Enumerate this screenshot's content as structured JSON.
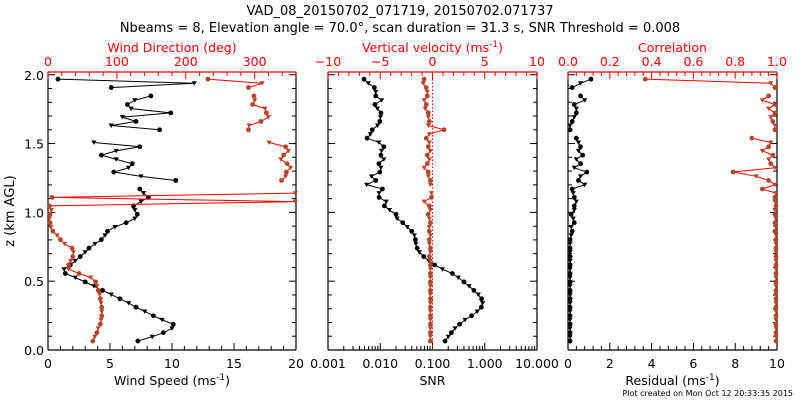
{
  "title_line1": "VAD_08_20150702_071719, 20150702.071737",
  "title_line2": "Nbeams = 8, Elevation angle = 70.0°, scan duration = 31.3 s, SNR Threshold = 0.008",
  "footer": "Plot created on Mon Oct 12 20:33:35 2015",
  "colors": {
    "primary": "#000000",
    "secondary_line": "#ff0000",
    "secondary_marker": "#b5442a",
    "axis_top": "#ff0000"
  },
  "chart_data": [
    {
      "type": "line",
      "panel": "wind",
      "ylabel": "z (km AGL)",
      "ylim": [
        0,
        2.02
      ],
      "yticks": [
        "0.0",
        "0.5",
        "1.0",
        "1.5",
        "2.0"
      ],
      "bottom_axis": {
        "label": "Wind Speed (ms",
        "label_sup": "-1",
        "label_end": ")",
        "range": [
          0,
          20
        ],
        "ticks": [
          "0",
          "5",
          "10",
          "15",
          "20"
        ]
      },
      "top_axis": {
        "label": "Wind Direction (deg)",
        "range": [
          0,
          360
        ],
        "ticks": [
          "0",
          "100",
          "200",
          "300"
        ]
      },
      "series": [
        {
          "name": "Wind Speed",
          "axis": "bottom",
          "color": "#000000",
          "values": [
            7.25,
            8.4,
            9.3,
            10.0,
            10.1,
            9.2,
            8.5,
            7.8,
            7.1,
            6.5,
            5.8,
            5.1,
            4.4,
            3.7,
            3.0,
            2.2,
            1.4,
            1.3,
            1.8,
            2.2,
            2.6,
            3.0,
            3.3,
            3.8,
            4.3,
            4.6,
            4.8,
            5.4,
            6.3,
            7.0,
            7.2,
            7.0,
            6.9,
            7.5,
            8.1,
            7.7,
            7.4,
            null,
            10.3,
            7.5,
            5.3,
            6.5,
            6.8,
            5.5,
            4.3,
            5.5,
            7.4,
            3.7,
            null,
            null,
            9.0,
            5.1,
            7.1,
            6.0,
            9.9,
            6.7,
            6.4,
            7.0,
            8.3,
            null,
            5.1,
            11.8,
            0.8
          ]
        },
        {
          "name": "Wind Direction",
          "axis": "top",
          "color": "#ff0000",
          "values": [
            65,
            68,
            71,
            73,
            76,
            77,
            78,
            78,
            78,
            77,
            76,
            75,
            73,
            71,
            69,
            62,
            45,
            30,
            30,
            33,
            36,
            37,
            35,
            24,
            18,
            13,
            7,
            4,
            3,
            2,
            3,
            5,
            2,
            359,
            6,
            359,
            null,
            null,
            339,
            345,
            346,
            352,
            347,
            338,
            342,
            349,
            345,
            321,
            null,
            null,
            291,
            292,
            309,
            320,
            317,
            315,
            297,
            300,
            299,
            null,
            291,
            311,
            232
          ]
        }
      ]
    },
    {
      "type": "line",
      "panel": "snr_w",
      "ylim": [
        0,
        2.02
      ],
      "bottom_axis": {
        "label": "SNR",
        "scale": "log",
        "range": [
          0.001,
          10
        ],
        "ticks": [
          "0.001",
          "0.010",
          "0.100",
          "1.000",
          "10.000"
        ]
      },
      "top_axis": {
        "label": "Vertical velocity (ms",
        "label_sup": "-1",
        "label_end": ")",
        "range": [
          -10,
          10
        ],
        "ticks": [
          "−10",
          "−5",
          "0",
          "5",
          "10"
        ]
      },
      "series": [
        {
          "name": "SNR",
          "axis": "bottom",
          "color": "#000000",
          "values": [
            0.174,
            0.2,
            0.23,
            0.27,
            0.33,
            0.42,
            0.56,
            0.72,
            0.86,
            0.91,
            0.87,
            0.75,
            0.62,
            0.5,
            0.4,
            0.31,
            0.24,
            0.155,
            0.11,
            0.085,
            0.068,
            0.056,
            0.051,
            0.048,
            0.047,
            0.045,
            0.04,
            0.033,
            0.027,
            0.021,
            0.02,
            0.015,
            0.012,
            0.013,
            0.0095,
            0.0095,
            0.011,
            0.0055,
            0.0082,
            0.0068,
            0.0098,
            0.0103,
            0.0094,
            0.0117,
            0.0103,
            0.0106,
            0.0117,
            0.0094,
            0.0056,
            0.0065,
            0.007,
            0.0089,
            0.0098,
            0.0101,
            0.0103,
            0.0088,
            0.0079,
            0.0106,
            0.0082,
            0.0082,
            0.0077,
            0.0059,
            0.0049
          ]
        },
        {
          "name": "Vertical velocity",
          "axis": "top",
          "color": "#ff0000",
          "values": [
            -0.2,
            -0.2,
            -0.2,
            -0.2,
            -0.2,
            -0.2,
            -0.2,
            -0.2,
            -0.2,
            -0.2,
            -0.2,
            -0.2,
            -0.2,
            -0.2,
            -0.2,
            -0.2,
            -0.2,
            -0.2,
            -0.2,
            -0.2,
            -0.3,
            -0.2,
            -0.2,
            -0.3,
            -0.3,
            -0.2,
            -0.3,
            -0.3,
            -0.2,
            -0.3,
            -0.4,
            -0.2,
            -0.3,
            -0.8,
            -0.1,
            -0.1,
            null,
            -0.2,
            -0.2,
            -0.4,
            -0.4,
            -0.8,
            -0.5,
            -0.3,
            -0.5,
            -0.2,
            -0.4,
            -0.3,
            -0.6,
            -0.3,
            1.1,
            -0.4,
            -0.3,
            -0.4,
            -0.4,
            -0.7,
            -0.6,
            -0.8,
            -0.5,
            -0.5,
            -0.6,
            -0.9,
            -0.8
          ]
        }
      ]
    },
    {
      "type": "line",
      "panel": "corr",
      "ylim": [
        0,
        2.02
      ],
      "bottom_axis": {
        "label": "Residual (ms",
        "label_sup": "-1",
        "label_end": ")",
        "range": [
          0,
          10
        ],
        "ticks": [
          "0",
          "2",
          "4",
          "6",
          "8",
          "10"
        ]
      },
      "top_axis": {
        "label": "Correlation",
        "range": [
          0,
          1
        ],
        "ticks": [
          "0.0",
          "0.2",
          "0.4",
          "0.6",
          "0.8",
          "1.0"
        ]
      },
      "series": [
        {
          "name": "Residual",
          "axis": "bottom",
          "color": "#000000",
          "values": [
            0.1,
            0.1,
            0.1,
            0.1,
            0.1,
            0.1,
            0.1,
            0.1,
            0.1,
            0.1,
            0.1,
            0.1,
            0.1,
            0.1,
            0.1,
            0.1,
            0.1,
            0.1,
            0.1,
            0.1,
            0.1,
            0.1,
            0.1,
            0.1,
            0.1,
            0.15,
            0.2,
            0.15,
            0.3,
            0.25,
            0.15,
            0.3,
            0.3,
            0.4,
            0.3,
            0.25,
            0.2,
            0.8,
            0.5,
            0.6,
            0.9,
            0.3,
            0.6,
            0.4,
            0.7,
            0.5,
            0.6,
            0.5,
            0.4,
            null,
            0.1,
            0.1,
            0.2,
            0.3,
            0.4,
            0.4,
            0.3,
            0.8,
            0.6,
            null,
            0.2,
            0.6,
            1.1
          ]
        },
        {
          "name": "Correlation",
          "axis": "top",
          "color": "#ff0000",
          "values": [
            0.995,
            0.995,
            0.995,
            0.995,
            0.995,
            0.995,
            0.995,
            0.995,
            0.995,
            0.995,
            0.995,
            0.995,
            0.995,
            0.995,
            0.995,
            0.995,
            0.995,
            0.995,
            0.995,
            0.995,
            0.995,
            0.995,
            0.995,
            0.995,
            0.995,
            0.995,
            0.99,
            0.995,
            0.99,
            0.995,
            0.99,
            0.99,
            0.995,
            0.99,
            0.99,
            0.995,
            0.93,
            0.99,
            0.96,
            0.9,
            0.79,
            0.99,
            0.97,
            0.96,
            0.98,
            0.93,
            0.96,
            0.97,
            0.88,
            null,
            0.99,
            0.99,
            0.98,
            0.97,
            0.99,
            0.96,
            0.99,
            0.93,
            0.96,
            null,
            0.99,
            0.97,
            0.37
          ]
        }
      ]
    }
  ],
  "z_km": [
    0.065,
    0.096,
    0.126,
    0.157,
    0.188,
    0.219,
    0.249,
    0.28,
    0.311,
    0.341,
    0.372,
    0.403,
    0.433,
    0.464,
    0.495,
    0.526,
    0.556,
    0.587,
    0.618,
    0.648,
    0.679,
    0.71,
    0.74,
    0.771,
    0.802,
    0.833,
    0.863,
    0.894,
    0.925,
    0.955,
    0.986,
    1.017,
    1.047,
    1.078,
    1.109,
    1.14,
    1.17,
    1.201,
    1.232,
    1.262,
    1.293,
    1.324,
    1.354,
    1.385,
    1.416,
    1.447,
    1.477,
    1.508,
    1.539,
    1.569,
    1.6,
    1.631,
    1.661,
    1.692,
    1.723,
    1.754,
    1.784,
    1.815,
    1.846,
    1.876,
    1.907,
    1.938,
    1.968
  ]
}
